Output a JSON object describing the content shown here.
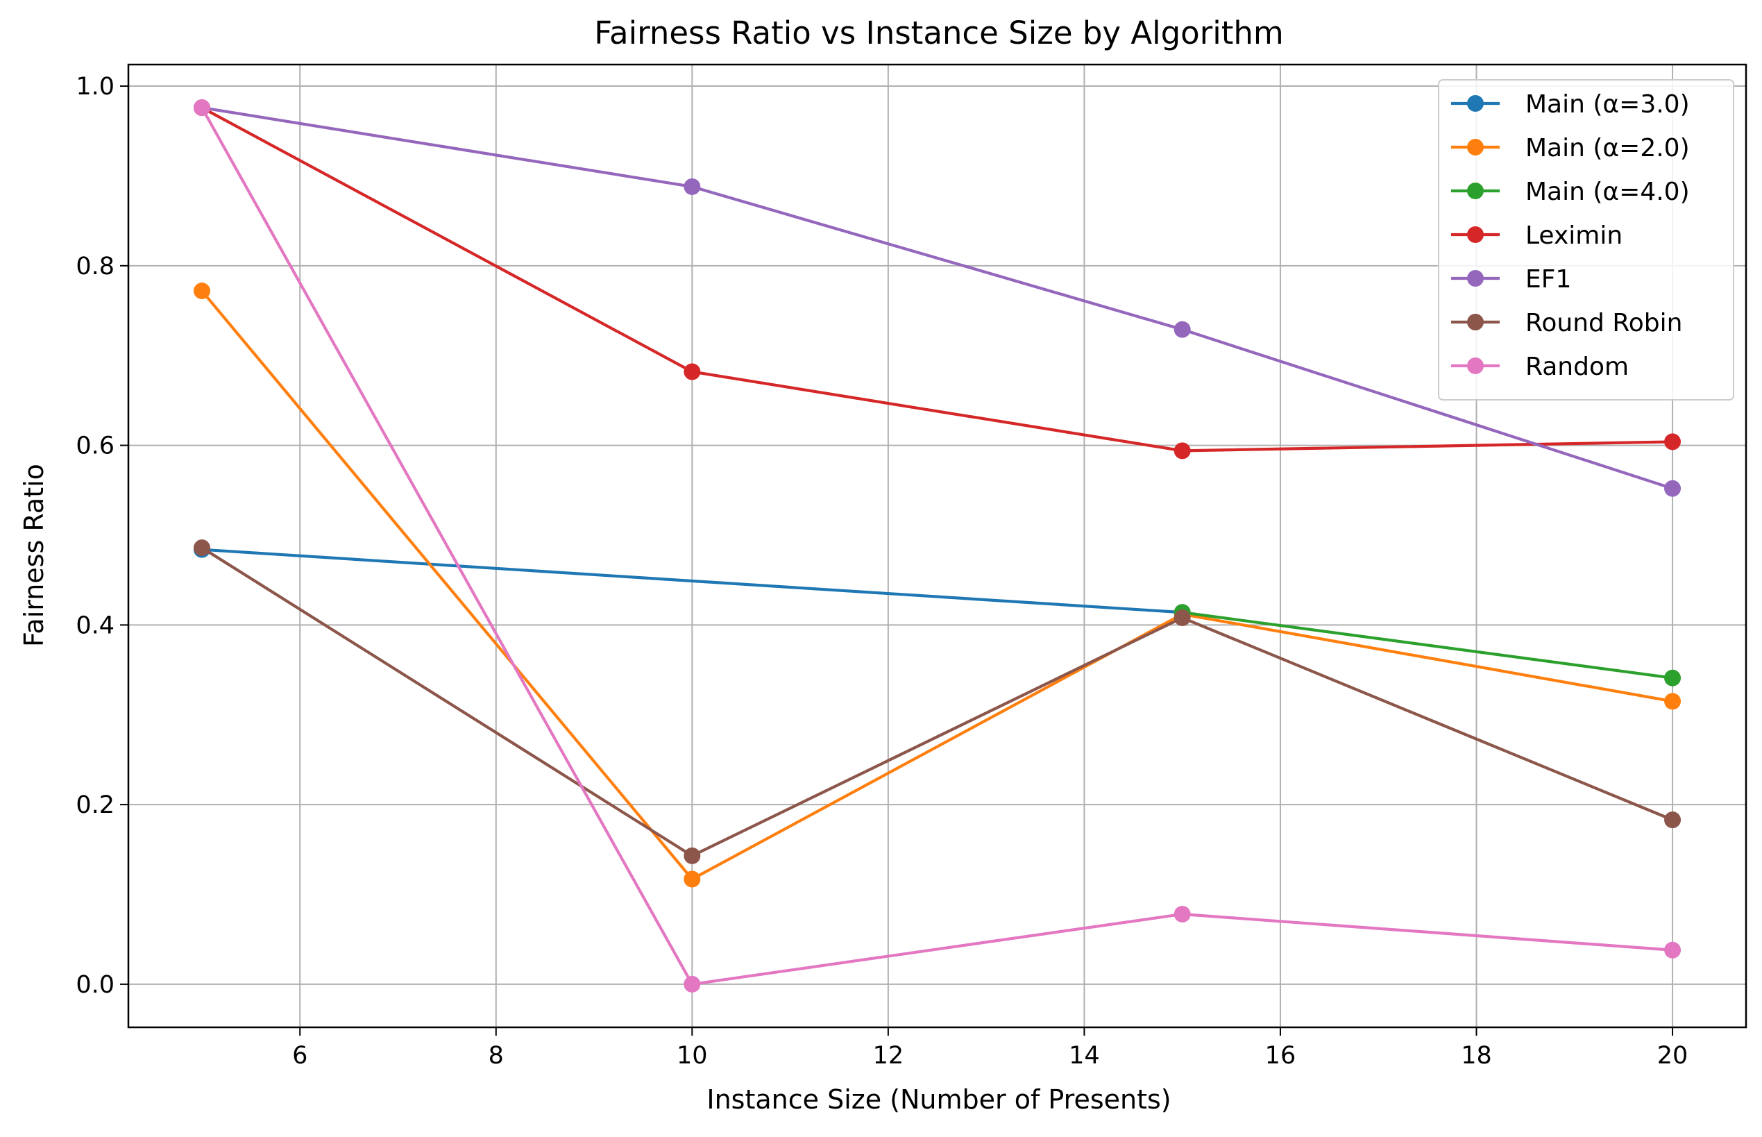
{
  "chart_data": {
    "type": "line",
    "title": "Fairness Ratio vs Instance Size by Algorithm",
    "xlabel": "Instance Size (Number of Presents)",
    "ylabel": "Fairness Ratio",
    "xlim": [
      4.25,
      20.75
    ],
    "ylim": [
      -0.048,
      1.024
    ],
    "xticks": [
      6,
      8,
      10,
      12,
      14,
      16,
      18,
      20
    ],
    "yticks": [
      0.0,
      0.2,
      0.4,
      0.6,
      0.8,
      1.0
    ],
    "xtick_labels": [
      "6",
      "8",
      "10",
      "12",
      "14",
      "16",
      "18",
      "20"
    ],
    "ytick_labels": [
      "0.0",
      "0.2",
      "0.4",
      "0.6",
      "0.8",
      "1.0"
    ],
    "grid": true,
    "legend_position": "top-right",
    "x": [
      5,
      10,
      15,
      20
    ],
    "series": [
      {
        "name": "Main (α=3.0)",
        "color": "#1f77b4",
        "values": [
          0.484,
          null,
          0.414,
          null
        ]
      },
      {
        "name": "Main (α=2.0)",
        "color": "#ff7f0e",
        "values": [
          0.772,
          0.117,
          0.412,
          0.315
        ]
      },
      {
        "name": "Main (α=4.0)",
        "color": "#2ca02c",
        "values": [
          null,
          null,
          0.414,
          0.341
        ]
      },
      {
        "name": "Leximin",
        "color": "#d62728",
        "values": [
          0.976,
          0.682,
          0.594,
          0.604
        ]
      },
      {
        "name": "EF1",
        "color": "#9467bd",
        "values": [
          0.976,
          0.888,
          0.729,
          0.552
        ]
      },
      {
        "name": "Round Robin",
        "color": "#8c564b",
        "values": [
          0.486,
          0.143,
          0.408,
          0.183
        ]
      },
      {
        "name": "Random",
        "color": "#e377c2",
        "values": [
          0.976,
          0.0,
          0.078,
          0.038
        ]
      }
    ]
  }
}
